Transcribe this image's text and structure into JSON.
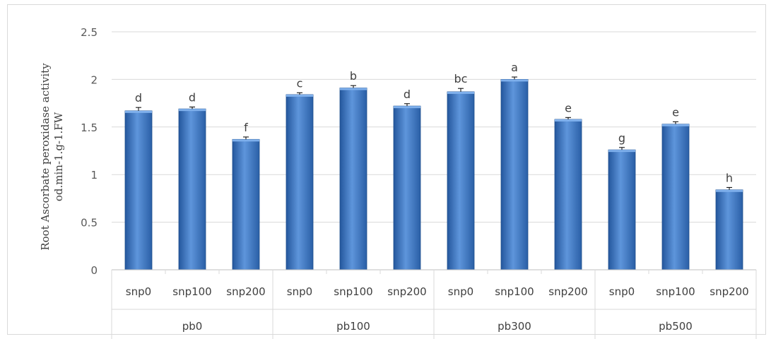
{
  "chart_data": {
    "type": "bar",
    "ylabel_line1": "Root Ascorbate peroxidase activity",
    "ylabel_line2": "od.min-1.g-1.FW",
    "ylim": [
      0,
      2.5
    ],
    "yticks": [
      "0",
      "0.5",
      "1",
      "1.5",
      "2",
      "2.5"
    ],
    "grid": true,
    "categories": [
      "snp0",
      "snp100",
      "snp200",
      "snp0",
      "snp100",
      "snp200",
      "snp0",
      "snp100",
      "snp200",
      "snp0",
      "snp100",
      "snp200"
    ],
    "groups": [
      {
        "label": "pb0",
        "count": 3
      },
      {
        "label": "pb100",
        "count": 3
      },
      {
        "label": "pb300",
        "count": 3
      },
      {
        "label": "pb500",
        "count": 3
      }
    ],
    "values": [
      1.67,
      1.69,
      1.37,
      1.84,
      1.91,
      1.72,
      1.87,
      2.0,
      1.58,
      1.26,
      1.53,
      0.84
    ],
    "errors": [
      0.035,
      0.02,
      0.025,
      0.02,
      0.025,
      0.025,
      0.035,
      0.025,
      0.02,
      0.025,
      0.025,
      0.025
    ],
    "letters": [
      "d",
      "d",
      "f",
      "c",
      "b",
      "d",
      "bc",
      "a",
      "e",
      "g",
      "e",
      "h"
    ],
    "bar_color": "#3f79c6"
  }
}
